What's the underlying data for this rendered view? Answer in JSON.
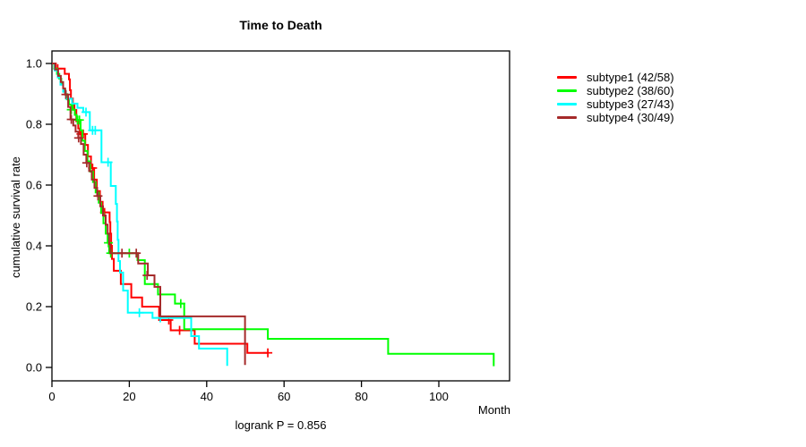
{
  "chart_data": {
    "type": "line",
    "variant": "kaplan-meier-step",
    "title": "Time to Death",
    "xlabel": "Month",
    "ylabel": "cumulative survival rate",
    "annotation": "logrank P = 0.856",
    "xlim": [
      0,
      118
    ],
    "ylim": [
      0,
      1
    ],
    "xticks": [
      0,
      20,
      40,
      60,
      80,
      100
    ],
    "yticks": [
      0.0,
      0.2,
      0.4,
      0.6,
      0.8,
      1.0
    ],
    "grid": false,
    "legend_position": "right-outside",
    "frame_color": "#000000",
    "series": [
      {
        "name": "subtype1 (42/58)",
        "color": "#ff0000",
        "steps": [
          [
            0,
            1.0
          ],
          [
            1.0,
            0.983
          ],
          [
            3.3,
            0.966
          ],
          [
            4.4,
            0.948
          ],
          [
            4.65,
            0.912
          ],
          [
            4.9,
            0.885
          ],
          [
            5.4,
            0.866
          ],
          [
            5.8,
            0.847
          ],
          [
            6.3,
            0.81
          ],
          [
            6.8,
            0.786
          ],
          [
            7.2,
            0.768
          ],
          [
            8.6,
            0.732
          ],
          [
            9.3,
            0.694
          ],
          [
            10.1,
            0.656
          ],
          [
            10.9,
            0.618
          ],
          [
            11.6,
            0.58
          ],
          [
            12.4,
            0.545
          ],
          [
            13.1,
            0.51
          ],
          [
            14.9,
            0.478
          ],
          [
            15.1,
            0.44
          ],
          [
            15.3,
            0.4
          ],
          [
            15.5,
            0.357
          ],
          [
            16.0,
            0.318
          ],
          [
            17.8,
            0.274
          ],
          [
            20.5,
            0.23
          ],
          [
            23.3,
            0.2
          ],
          [
            27.7,
            0.156
          ],
          [
            30.7,
            0.122
          ],
          [
            36.9,
            0.078
          ],
          [
            50.5,
            0.048
          ],
          [
            56.0,
            0.048
          ]
        ],
        "censors": [
          [
            1.5,
            0.983
          ],
          [
            7.5,
            0.768
          ],
          [
            8.1,
            0.768
          ],
          [
            10.5,
            0.656
          ],
          [
            13.6,
            0.51
          ],
          [
            30.2,
            0.156
          ],
          [
            33.0,
            0.122
          ],
          [
            55.8,
            0.048
          ]
        ]
      },
      {
        "name": "subtype2 (38/60)",
        "color": "#00ff00",
        "steps": [
          [
            0,
            1.0
          ],
          [
            0.6,
            0.983
          ],
          [
            1.3,
            0.966
          ],
          [
            1.9,
            0.95
          ],
          [
            2.4,
            0.933
          ],
          [
            2.9,
            0.916
          ],
          [
            3.4,
            0.899
          ],
          [
            3.9,
            0.882
          ],
          [
            4.4,
            0.865
          ],
          [
            5.4,
            0.848
          ],
          [
            5.9,
            0.831
          ],
          [
            6.4,
            0.814
          ],
          [
            7.4,
            0.78
          ],
          [
            7.9,
            0.746
          ],
          [
            8.5,
            0.712
          ],
          [
            9.2,
            0.678
          ],
          [
            9.9,
            0.644
          ],
          [
            10.6,
            0.61
          ],
          [
            11.3,
            0.576
          ],
          [
            12.1,
            0.542
          ],
          [
            12.7,
            0.508
          ],
          [
            13.3,
            0.474
          ],
          [
            13.9,
            0.44
          ],
          [
            14.4,
            0.41
          ],
          [
            14.8,
            0.376
          ],
          [
            22.1,
            0.353
          ],
          [
            24.0,
            0.274
          ],
          [
            27.4,
            0.24
          ],
          [
            31.8,
            0.21
          ],
          [
            34.2,
            0.126
          ],
          [
            55.8,
            0.094
          ],
          [
            86.9,
            0.045
          ],
          [
            114.2,
            0.004
          ]
        ],
        "censors": [
          [
            5.0,
            0.848
          ],
          [
            6.6,
            0.814
          ],
          [
            7.1,
            0.814
          ],
          [
            14.6,
            0.41
          ],
          [
            15.2,
            0.376
          ],
          [
            20.0,
            0.376
          ],
          [
            33.3,
            0.21
          ]
        ]
      },
      {
        "name": "subtype3 (27/43)",
        "color": "#00ffff",
        "steps": [
          [
            0,
            1.0
          ],
          [
            0.7,
            0.977
          ],
          [
            1.5,
            0.954
          ],
          [
            2.2,
            0.93
          ],
          [
            2.9,
            0.907
          ],
          [
            3.6,
            0.884
          ],
          [
            5.2,
            0.868
          ],
          [
            6.6,
            0.854
          ],
          [
            8.1,
            0.84
          ],
          [
            9.8,
            0.78
          ],
          [
            12.8,
            0.675
          ],
          [
            15.2,
            0.597
          ],
          [
            16.5,
            0.538
          ],
          [
            16.8,
            0.48
          ],
          [
            17.0,
            0.42
          ],
          [
            17.2,
            0.35
          ],
          [
            17.6,
            0.312
          ],
          [
            18.4,
            0.253
          ],
          [
            19.6,
            0.18
          ],
          [
            26.0,
            0.163
          ],
          [
            36.0,
            0.103
          ],
          [
            38.0,
            0.062
          ],
          [
            45.3,
            0.005
          ]
        ],
        "censors": [
          [
            8.8,
            0.84
          ],
          [
            10.5,
            0.78
          ],
          [
            11.2,
            0.78
          ],
          [
            14.5,
            0.675
          ],
          [
            22.6,
            0.18
          ],
          [
            28.0,
            0.163
          ]
        ]
      },
      {
        "name": "subtype4 (30/49)",
        "color": "#a52a2a",
        "steps": [
          [
            0,
            1.0
          ],
          [
            0.8,
            0.98
          ],
          [
            1.6,
            0.959
          ],
          [
            2.3,
            0.939
          ],
          [
            2.9,
            0.918
          ],
          [
            3.4,
            0.898
          ],
          [
            4.2,
            0.857
          ],
          [
            4.8,
            0.816
          ],
          [
            5.5,
            0.796
          ],
          [
            6.1,
            0.776
          ],
          [
            6.8,
            0.755
          ],
          [
            7.5,
            0.735
          ],
          [
            8.2,
            0.7
          ],
          [
            8.9,
            0.673
          ],
          [
            9.6,
            0.646
          ],
          [
            10.3,
            0.618
          ],
          [
            11.0,
            0.591
          ],
          [
            11.7,
            0.564
          ],
          [
            12.5,
            0.53
          ],
          [
            13.2,
            0.5
          ],
          [
            13.9,
            0.47
          ],
          [
            14.4,
            0.44
          ],
          [
            14.8,
            0.405
          ],
          [
            15.1,
            0.376
          ],
          [
            22.3,
            0.342
          ],
          [
            24.8,
            0.303
          ],
          [
            26.5,
            0.265
          ],
          [
            28.0,
            0.168
          ],
          [
            49.9,
            0.008
          ]
        ],
        "censors": [
          [
            3.6,
            0.898
          ],
          [
            5.0,
            0.816
          ],
          [
            6.9,
            0.755
          ],
          [
            9.0,
            0.673
          ],
          [
            11.9,
            0.564
          ],
          [
            18.1,
            0.376
          ],
          [
            21.8,
            0.376
          ],
          [
            24.6,
            0.303
          ]
        ]
      }
    ]
  }
}
